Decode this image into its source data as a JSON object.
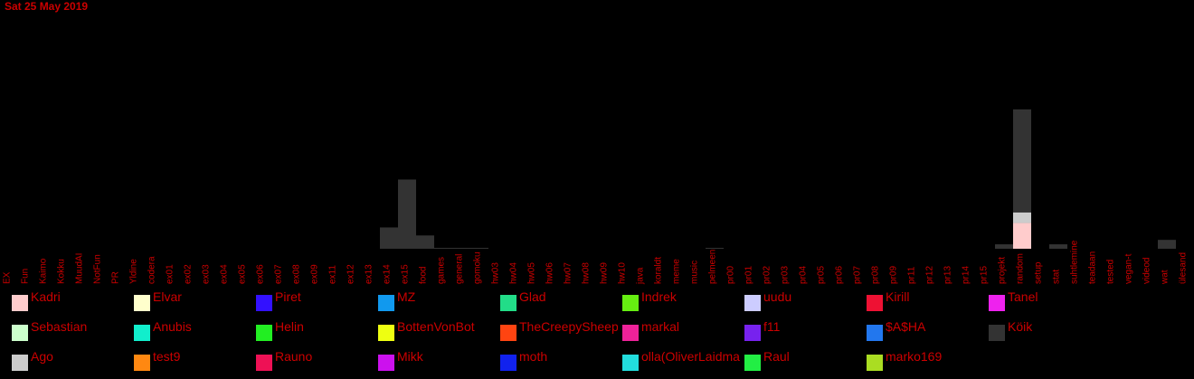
{
  "date": "Sat 25 May 2019",
  "colors": {
    "text": "#cc0000",
    "background": "#000000"
  },
  "chart_data": {
    "type": "bar",
    "stacked": true,
    "title": "",
    "xlabel": "",
    "ylabel": "",
    "grid": false,
    "legend": "bottom",
    "categories": [
      "EX",
      "Fun",
      "Kaimo",
      "Kokku",
      "MuudAI",
      "NotFun",
      "PR",
      "Yldine",
      "codera",
      "ex01",
      "ex02",
      "ex03",
      "ex04",
      "ex05",
      "ex06",
      "ex07",
      "ex08",
      "ex09",
      "ex11",
      "ex12",
      "ex13",
      "ex14",
      "ex15",
      "food",
      "games",
      "general",
      "gomoku",
      "hw03",
      "hw04",
      "hw05",
      "hw06",
      "hw07",
      "hw08",
      "hw09",
      "hw10",
      "java",
      "koraldt",
      "meme",
      "music",
      "pelmeen",
      "pr00",
      "pr01",
      "pr02",
      "pr03",
      "pr04",
      "pr05",
      "pr06",
      "pr07",
      "pr08",
      "pr09",
      "pr11",
      "pr12",
      "pr13",
      "pr14",
      "pr15",
      "projekt",
      "random",
      "setup",
      "stat",
      "suhtlemine",
      "teadaan",
      "tested",
      "vegan-t",
      "videod",
      "wat",
      "ülesand"
    ],
    "ylim": [
      0,
      160
    ],
    "series": [
      {
        "name": "Kadri",
        "color": "#ffcccc",
        "values": [
          0,
          0,
          0,
          0,
          0,
          0,
          0,
          0,
          0,
          0,
          0,
          0,
          0,
          0,
          0,
          0,
          0,
          0,
          0,
          0,
          0,
          0,
          0,
          0,
          0,
          0,
          0,
          0,
          0,
          0,
          0,
          0,
          0,
          0,
          0,
          0,
          0,
          0,
          0,
          0,
          0,
          0,
          0,
          0,
          0,
          0,
          0,
          0,
          0,
          0,
          0,
          0,
          0,
          0,
          0,
          0,
          29,
          0,
          0,
          0,
          0,
          0,
          0,
          0,
          0,
          0
        ]
      },
      {
        "name": "Ago",
        "color": "#cccccc",
        "values": [
          0,
          0,
          0,
          0,
          0,
          0,
          0,
          0,
          0,
          0,
          0,
          0,
          0,
          0,
          0,
          0,
          0,
          0,
          0,
          0,
          0,
          0,
          0,
          0,
          0,
          0,
          0,
          0,
          0,
          0,
          0,
          0,
          0,
          0,
          0,
          0,
          0,
          0,
          0,
          0,
          0,
          0,
          0,
          0,
          0,
          0,
          0,
          0,
          0,
          0,
          0,
          0,
          0,
          0,
          0,
          0,
          12,
          0,
          0,
          0,
          0,
          0,
          0,
          0,
          0,
          0
        ]
      },
      {
        "name": "Köik",
        "color": "#333333",
        "values": [
          0,
          0,
          0,
          0,
          0,
          0,
          0,
          0,
          0,
          0,
          0,
          0,
          0,
          0,
          0,
          0,
          0,
          0,
          0,
          0,
          0,
          24,
          78,
          15,
          1,
          1,
          1,
          0,
          0,
          0,
          0,
          0,
          0,
          0,
          0,
          0,
          0,
          0,
          0,
          1,
          0,
          0,
          0,
          0,
          0,
          0,
          0,
          0,
          0,
          0,
          0,
          0,
          0,
          0,
          0,
          5,
          116,
          0,
          5,
          0,
          0,
          0,
          0,
          0,
          10,
          0
        ]
      }
    ]
  },
  "legend_items": [
    {
      "name": "Kadri",
      "color": "#ffcccc"
    },
    {
      "name": "Elvar",
      "color": "#ffffcc"
    },
    {
      "name": "Piret",
      "color": "#3311ff"
    },
    {
      "name": "MZ",
      "color": "#1199ee"
    },
    {
      "name": "Glad",
      "color": "#22dd88"
    },
    {
      "name": "Indrek",
      "color": "#66ee11"
    },
    {
      "name": "uudu",
      "color": "#ccccff"
    },
    {
      "name": "Kirill",
      "color": "#ee1133"
    },
    {
      "name": "Tanel",
      "color": "#ee22ee"
    },
    {
      "name": "Sebastian",
      "color": "#ccffcc"
    },
    {
      "name": "Anubis",
      "color": "#11eecc"
    },
    {
      "name": "Helin",
      "color": "#22ee22"
    },
    {
      "name": "BottenVonBot",
      "color": "#eeff11"
    },
    {
      "name": "TheCreepySheep",
      "color": "#ff4411"
    },
    {
      "name": "markal",
      "color": "#ee2299"
    },
    {
      "name": "f11",
      "color": "#7722ee"
    },
    {
      "name": "$A$HA",
      "color": "#2277ee"
    },
    {
      "name": "Köik",
      "color": "#333333"
    },
    {
      "name": "Ago",
      "color": "#cccccc"
    },
    {
      "name": "test9",
      "color": "#ff8811"
    },
    {
      "name": "Rauno",
      "color": "#ee1155"
    },
    {
      "name": "Mikk",
      "color": "#cc11ee"
    },
    {
      "name": "moth",
      "color": "#1122ee"
    },
    {
      "name": "olla(OliverLaidma)",
      "color": "#22dddd"
    },
    {
      "name": "Raul",
      "color": "#22ee44"
    },
    {
      "name": "marko169",
      "color": "#aadd22"
    }
  ]
}
